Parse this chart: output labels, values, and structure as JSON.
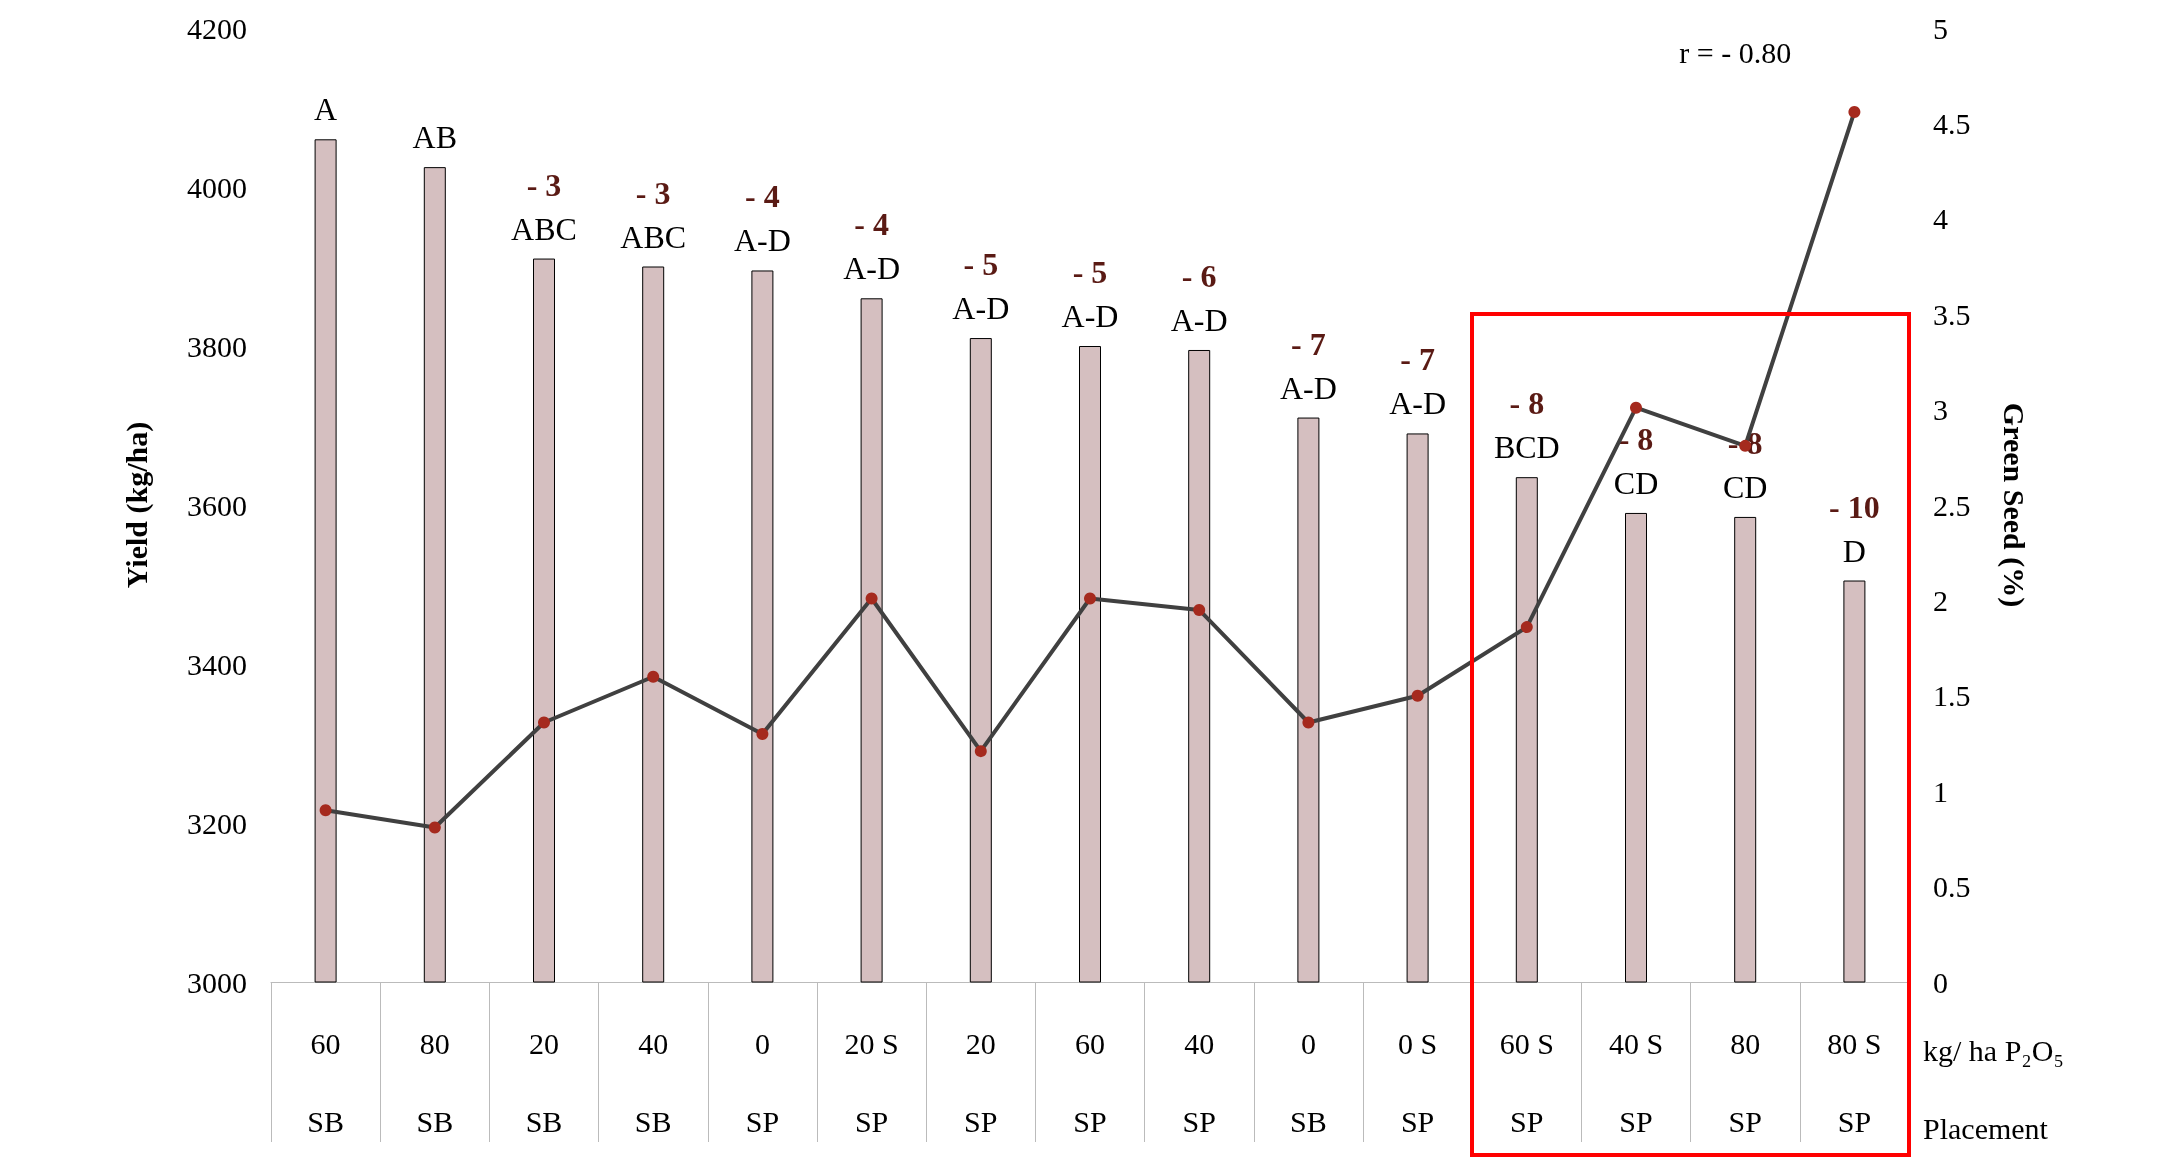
{
  "chart_data": {
    "type": "bar",
    "ylabel": "Yield (kg/ha)",
    "y2label": "Green Seed (%)",
    "categories": [
      "60\nSB",
      "80\nSB",
      "20\nSB",
      "40\nSB",
      "0\nSP",
      "20 S\nSP",
      "20\nSP",
      "60\nSP",
      "40\nSP",
      "0\nSB",
      "0 S\nSP",
      "60 S\nSP",
      "40 S\nSP",
      "80\nSP",
      "80 S\nSP"
    ],
    "series": [
      {
        "color": "#d5bfc0",
        "values": [
          4060,
          4025,
          3910,
          3900,
          3895,
          3860,
          3810,
          3800,
          3795,
          3710,
          3690,
          3635,
          3590,
          3585,
          3505
        ]
      },
      {
        "type": "line",
        "axis": "y2",
        "color": "#404040",
        "marker": "circle",
        "values": [
          0.9,
          0.81,
          1.36,
          1.6,
          1.3,
          2.01,
          1.21,
          2.01,
          1.95,
          1.36,
          1.5,
          1.86,
          3.01,
          2.81,
          4.56
        ]
      }
    ],
    "ylim": [
      3000,
      4200
    ],
    "yticks": [
      3000,
      3200,
      3400,
      3600,
      3800,
      4000,
      4200
    ],
    "y2lim": [
      0,
      5
    ],
    "y2ticks": [
      0,
      0.5,
      1,
      1.5,
      2,
      2.5,
      3,
      3.5,
      4,
      4.5,
      5
    ],
    "grid": false,
    "annotations": [
      "r = - 0.80",
      "kg/ ha P₂O₅",
      "Placement",
      {
        "text": "A",
        "x": "60\nSB",
        "y": 4060
      },
      {
        "text": "AB",
        "x": "80\nSB",
        "y": 4025
      },
      {
        "text": "ABC",
        "x": "20\nSB",
        "y": 3910
      },
      {
        "text": "ABC",
        "x": "40\nSB",
        "y": 3900
      },
      {
        "text": "A-D",
        "x": "0\nSP",
        "y": 3895
      },
      {
        "text": "A-D",
        "x": "20 S\nSP",
        "y": 3860
      },
      {
        "text": "A-D",
        "x": "20\nSP",
        "y": 3810
      },
      {
        "text": "A-D",
        "x": "60\nSP",
        "y": 3800
      },
      {
        "text": "A-D",
        "x": "40\nSP",
        "y": 3795
      },
      {
        "text": "A-D",
        "x": "0\nSB",
        "y": 3710
      },
      {
        "text": "A-D",
        "x": "0 S\nSP",
        "y": 3690
      },
      {
        "text": "BCD",
        "x": "60 S\nSP",
        "y": 3635
      },
      {
        "text": "CD",
        "x": "40 S\nSP",
        "y": 3590
      },
      {
        "text": "CD",
        "x": "80\nSP",
        "y": 3585
      },
      {
        "text": "D",
        "x": "80 S\nSP",
        "y": 3505
      },
      {
        "text": "- 3",
        "x": "20\nSB",
        "y": 3910
      },
      {
        "text": "- 3",
        "x": "40\nSB",
        "y": 3900
      },
      {
        "text": "- 4",
        "x": "0\nSP",
        "y": 3895
      },
      {
        "text": "- 4",
        "x": "20 S\nSP",
        "y": 3860
      },
      {
        "text": "- 5",
        "x": "20\nSP",
        "y": 3810
      },
      {
        "text": "- 5",
        "x": "60\nSP",
        "y": 3800
      },
      {
        "text": "- 6",
        "x": "40\nSP",
        "y": 3795
      },
      {
        "text": "- 7",
        "x": "0\nSB",
        "y": 3710
      },
      {
        "text": "- 7",
        "x": "0 S\nSP",
        "y": 3690
      },
      {
        "text": "- 8",
        "x": "60 S\nSP",
        "y": 3635
      },
      {
        "text": "- 8",
        "x": "40 S\nSP",
        "y": 3590
      },
      {
        "text": "- 8",
        "x": "80\nSP",
        "y": 3585
      },
      {
        "text": "- 10",
        "x": "80 S\nSP",
        "y": 3505
      }
    ]
  }
}
